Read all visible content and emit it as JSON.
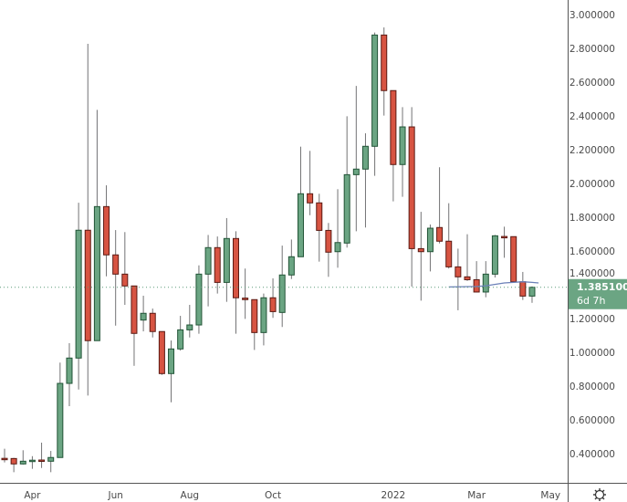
{
  "chart_data": {
    "type": "candlestick",
    "title": "",
    "xlabel": "",
    "ylabel": "",
    "ylim": [
      0.4,
      3.0
    ],
    "yticks": [
      "3.000000",
      "2.800000",
      "2.600000",
      "2.400000",
      "2.200000",
      "2.000000",
      "1.800000",
      "1.600000",
      "1.400000",
      "1.200000",
      "1.000000",
      "0.800000",
      "0.600000",
      "0.400000"
    ],
    "ytick_values": [
      3.0,
      2.8,
      2.6,
      2.4,
      2.2,
      2.0,
      1.8,
      1.6,
      1.4,
      1.2,
      1.0,
      0.8,
      0.6,
      0.4
    ],
    "xticks": [
      {
        "label": "Apr",
        "index": 3
      },
      {
        "label": "Jun",
        "index": 12
      },
      {
        "label": "Aug",
        "index": 20
      },
      {
        "label": "Oct",
        "index": 29
      },
      {
        "label": "2022",
        "index": 42
      },
      {
        "label": "Mar",
        "index": 51
      },
      {
        "label": "May",
        "index": 59
      }
    ],
    "candles_ohlc": [
      [
        0.372,
        0.429,
        0.348,
        0.37
      ],
      [
        0.371,
        0.375,
        0.29,
        0.339
      ],
      [
        0.339,
        0.42,
        0.335,
        0.355
      ],
      [
        0.359,
        0.385,
        0.31,
        0.361
      ],
      [
        0.362,
        0.465,
        0.315,
        0.358
      ],
      [
        0.355,
        0.416,
        0.29,
        0.377
      ],
      [
        0.377,
        0.939,
        0.377,
        0.816
      ],
      [
        0.816,
        1.054,
        0.681,
        0.966
      ],
      [
        0.966,
        1.886,
        0.78,
        1.723
      ],
      [
        1.723,
        2.827,
        0.744,
        1.069
      ],
      [
        1.069,
        2.436,
        1.069,
        1.863
      ],
      [
        1.863,
        1.989,
        1.45,
        1.577
      ],
      [
        1.577,
        1.724,
        1.158,
        1.463
      ],
      [
        1.463,
        1.712,
        1.281,
        1.393
      ],
      [
        1.393,
        1.393,
        0.92,
        1.112
      ],
      [
        1.191,
        1.335,
        1.124,
        1.231
      ],
      [
        1.231,
        1.259,
        1.088,
        1.123
      ],
      [
        1.123,
        1.123,
        0.866,
        0.874
      ],
      [
        0.874,
        1.07,
        0.704,
        1.02
      ],
      [
        1.02,
        1.216,
        1.01,
        1.133
      ],
      [
        1.133,
        1.281,
        1.088,
        1.162
      ],
      [
        1.162,
        1.515,
        1.11,
        1.463
      ],
      [
        1.463,
        1.695,
        1.272,
        1.62
      ],
      [
        1.62,
        1.686,
        1.348,
        1.414
      ],
      [
        1.414,
        1.795,
        1.299,
        1.674
      ],
      [
        1.674,
        1.717,
        1.11,
        1.323
      ],
      [
        1.321,
        1.496,
        1.198,
        1.312
      ],
      [
        1.312,
        1.312,
        1.014,
        1.117
      ],
      [
        1.117,
        1.348,
        1.041,
        1.323
      ],
      [
        1.323,
        1.438,
        1.204,
        1.241
      ],
      [
        1.236,
        1.632,
        1.15,
        1.458
      ],
      [
        1.458,
        1.668,
        1.434,
        1.566
      ],
      [
        1.566,
        2.218,
        1.566,
        1.939
      ],
      [
        1.939,
        2.193,
        1.812,
        1.885
      ],
      [
        1.885,
        1.939,
        1.537,
        1.722
      ],
      [
        1.722,
        1.766,
        1.447,
        1.593
      ],
      [
        1.596,
        1.966,
        1.501,
        1.65
      ],
      [
        1.647,
        2.398,
        1.62,
        2.052
      ],
      [
        2.052,
        2.578,
        1.717,
        2.085
      ],
      [
        2.085,
        2.297,
        1.739,
        2.22
      ],
      [
        2.22,
        2.894,
        2.045,
        2.879
      ],
      [
        2.879,
        2.924,
        2.402,
        2.55
      ],
      [
        2.55,
        2.55,
        1.894,
        2.112
      ],
      [
        2.112,
        2.452,
        1.921,
        2.335
      ],
      [
        2.335,
        2.452,
        1.389,
        1.614
      ],
      [
        1.614,
        1.832,
        1.306,
        1.596
      ],
      [
        1.596,
        1.757,
        1.479,
        1.735
      ],
      [
        1.739,
        2.096,
        1.645,
        1.658
      ],
      [
        1.658,
        1.883,
        1.496,
        1.506
      ],
      [
        1.506,
        1.614,
        1.249,
        1.447
      ],
      [
        1.447,
        1.699,
        1.423,
        1.43
      ],
      [
        1.43,
        1.54,
        1.355,
        1.357
      ],
      [
        1.357,
        1.54,
        1.326,
        1.463
      ],
      [
        1.463,
        1.695,
        1.443,
        1.69
      ],
      [
        1.686,
        1.744,
        1.56,
        1.683
      ],
      [
        1.685,
        1.685,
        1.418,
        1.418
      ],
      [
        1.418,
        1.476,
        1.31,
        1.333
      ],
      [
        1.333,
        1.39,
        1.293,
        1.385
      ]
    ],
    "moving_average": [
      [
        48,
        1.387
      ],
      [
        51,
        1.39
      ],
      [
        52,
        1.394
      ],
      [
        54,
        1.411
      ],
      [
        56,
        1.418
      ],
      [
        57,
        1.414
      ],
      [
        57.7,
        1.411
      ]
    ],
    "last_price": 1.3851,
    "last_price_label": "1.385100",
    "countdown": "6d 7h",
    "colors": {
      "up": "#6ba583",
      "up_border": "#225437",
      "down": "#d75442",
      "down_border": "#5b1a13",
      "wick": "#737375",
      "ma": "#6b80b8",
      "price_tag": "#6ba583"
    }
  },
  "icons": {
    "settings": "gear-icon"
  }
}
